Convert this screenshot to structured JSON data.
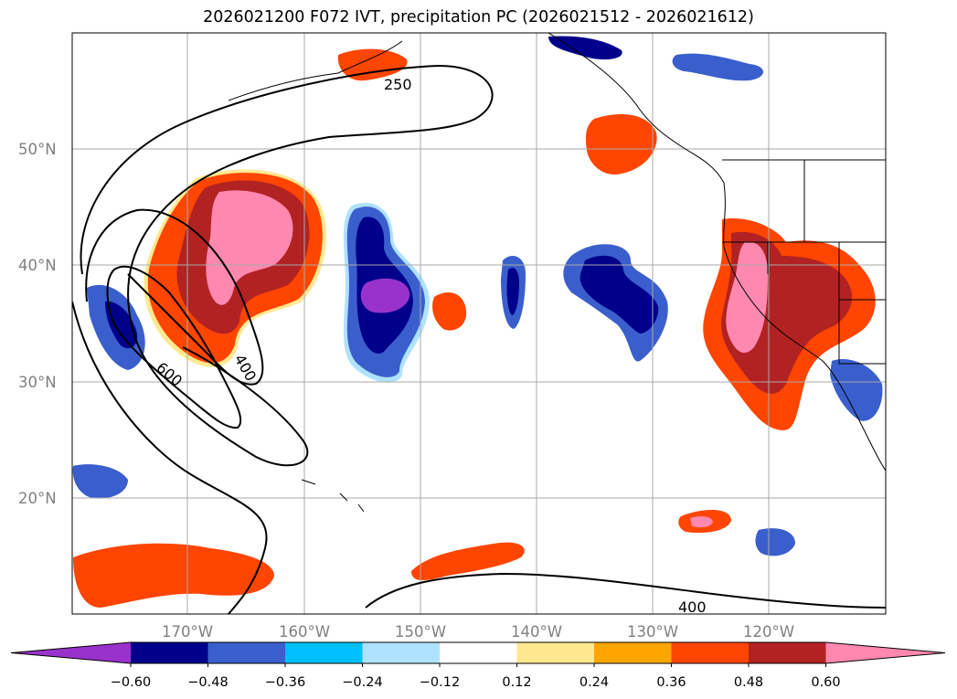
{
  "title": "2026021200 F072 IVT, precipitation PC (2026021512 - 2026021612)",
  "lat_labels": [
    "50°N",
    "40°N",
    "30°N",
    "20°N"
  ],
  "lon_labels": [
    "170°W",
    "160°W",
    "150°W",
    "140°W",
    "130°W",
    "120°W"
  ],
  "contour_labels": [
    "250",
    "400",
    "600",
    "400"
  ],
  "colorbar": {
    "tick_labels": [
      "−0.60",
      "−0.48",
      "−0.36",
      "−0.24",
      "−0.12",
      "0.12",
      "0.24",
      "0.36",
      "0.48",
      "0.60"
    ],
    "colors": [
      "#9932cc",
      "#00008b",
      "#3a5fcd",
      "#00bfff",
      "#afe2ff",
      "#ffffff",
      "#ffe88f",
      "#ffa500",
      "#ff4500",
      "#b22222",
      "#ff88b0"
    ]
  }
}
